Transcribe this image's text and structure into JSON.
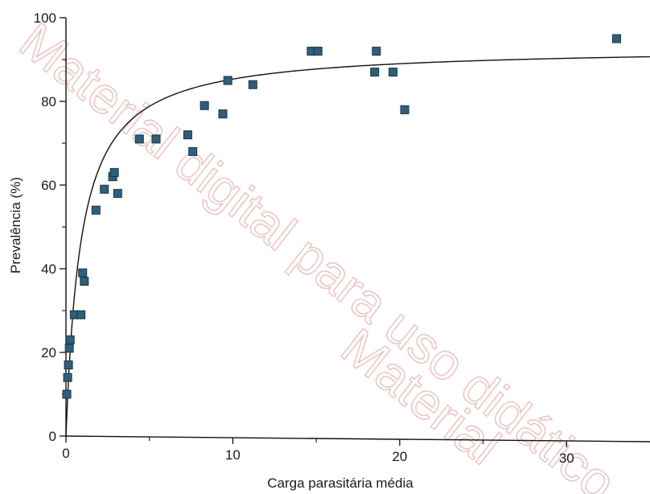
{
  "watermark": {
    "line1": "Material digital para uso didático",
    "line2": "Material"
  },
  "chart_data": {
    "type": "scatter",
    "title": "",
    "xlabel": "Carga parasitária média",
    "ylabel": "Prevalência (%)",
    "xlim": [
      0,
      35
    ],
    "ylim": [
      0,
      100
    ],
    "x_ticks": [
      0,
      10,
      20,
      30
    ],
    "x_tick_labels": [
      "0",
      "10",
      "20",
      "30"
    ],
    "y_ticks": [
      0,
      20,
      40,
      60,
      80,
      100
    ],
    "y_tick_labels": [
      "0",
      "20",
      "40",
      "60",
      "80",
      "100"
    ],
    "grid": false,
    "marker": "square",
    "marker_color": "#2f5f7a",
    "fit_curve": {
      "type": "line",
      "color": "#111111"
    },
    "series": [
      {
        "points": [
          [
            0.05,
            10
          ],
          [
            0.1,
            14
          ],
          [
            0.15,
            17
          ],
          [
            0.2,
            21
          ],
          [
            0.25,
            23
          ],
          [
            0.5,
            29
          ],
          [
            0.9,
            29
          ],
          [
            1.0,
            39
          ],
          [
            1.1,
            37
          ],
          [
            1.8,
            54
          ],
          [
            2.3,
            59
          ],
          [
            2.8,
            62
          ],
          [
            2.9,
            63
          ],
          [
            3.1,
            58
          ],
          [
            4.4,
            71
          ],
          [
            5.4,
            71
          ],
          [
            7.3,
            72
          ],
          [
            7.6,
            68
          ],
          [
            8.3,
            79
          ],
          [
            9.4,
            77
          ],
          [
            9.7,
            85
          ],
          [
            11.2,
            84
          ],
          [
            14.7,
            92
          ],
          [
            15.1,
            92
          ],
          [
            18.5,
            87
          ],
          [
            18.6,
            92
          ],
          [
            19.6,
            87
          ],
          [
            20.3,
            78
          ],
          [
            33.0,
            95
          ]
        ]
      }
    ]
  }
}
